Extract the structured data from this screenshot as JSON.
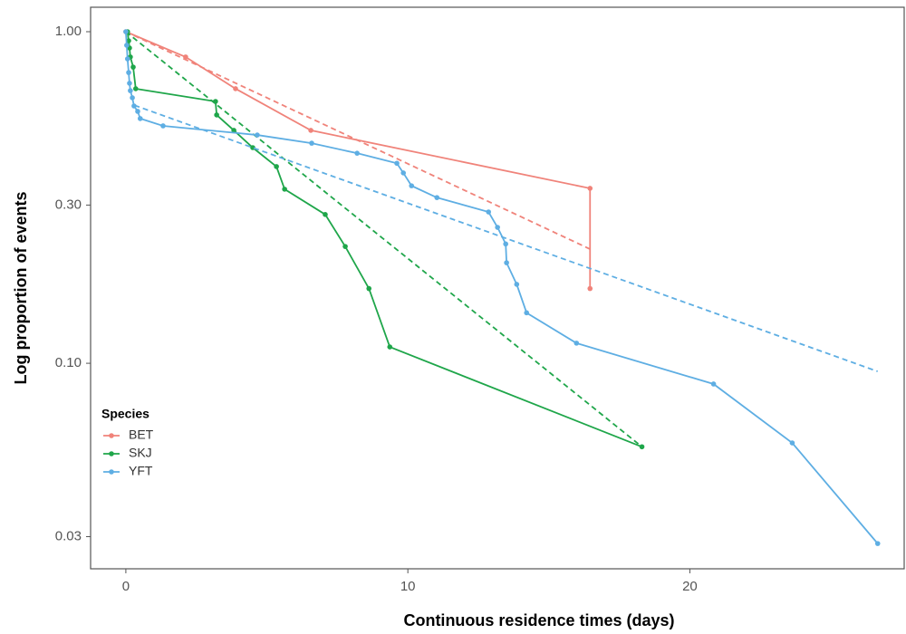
{
  "chart_data": {
    "type": "line",
    "x_label": "Continuous residence times (days)",
    "y_label": "Log proportion of events",
    "xlim": [
      -1.25,
      27.6
    ],
    "xticks": [
      0,
      10,
      20
    ],
    "ylim": [
      0.024,
      1.185
    ],
    "yticks": [
      {
        "value": 1,
        "label": "1.00"
      },
      {
        "value": 0.3,
        "label": "0.30"
      },
      {
        "value": 0.1,
        "label": "0.10"
      },
      0.03
    ],
    "y_log": true,
    "legend_title": "Species",
    "legend_position": "left",
    "series": [
      {
        "name": "BET",
        "color": "#f0837a",
        "x": [
          0,
          2.12,
          3.89,
          6.56,
          16.46,
          16.46
        ],
        "values": [
          1.0,
          0.839,
          0.673,
          0.504,
          0.337,
          0.168
        ],
        "fit_x": [
          0,
          16.46
        ],
        "fit_values": [
          1.0,
          0.221
        ]
      },
      {
        "name": "SKJ",
        "color": "#1fa64a",
        "x": [
          0.06,
          0.1,
          0.13,
          0.16,
          0.26,
          0.35,
          3.18,
          3.22,
          3.83,
          4.5,
          5.34,
          5.63,
          7.07,
          7.78,
          8.62,
          9.36,
          18.3
        ],
        "values": [
          1.0,
          0.939,
          0.893,
          0.839,
          0.782,
          0.673,
          0.616,
          0.561,
          0.504,
          0.447,
          0.392,
          0.335,
          0.281,
          0.225,
          0.168,
          0.112,
          0.056
        ],
        "fit_x": [
          0,
          18.3
        ],
        "fit_values": [
          1.0,
          0.056
        ]
      },
      {
        "name": "YFT",
        "color": "#5eaee3",
        "x": [
          0,
          0.03,
          0.06,
          0.1,
          0.13,
          0.16,
          0.23,
          0.29,
          0.42,
          0.51,
          1.32,
          4.66,
          6.59,
          8.2,
          9.61,
          9.84,
          10.13,
          11.03,
          12.86,
          13.18,
          13.47,
          13.5,
          13.86,
          14.21,
          15.98,
          20.84,
          23.63,
          26.66
        ],
        "values": [
          1.0,
          0.91,
          0.828,
          0.753,
          0.699,
          0.664,
          0.632,
          0.597,
          0.575,
          0.547,
          0.52,
          0.488,
          0.461,
          0.43,
          0.401,
          0.375,
          0.343,
          0.316,
          0.286,
          0.257,
          0.229,
          0.201,
          0.173,
          0.142,
          0.115,
          0.0866,
          0.0575,
          0.0286
        ],
        "fit_x": [
          0.3,
          26.66
        ],
        "fit_values": [
          0.6,
          0.0945
        ]
      }
    ]
  }
}
